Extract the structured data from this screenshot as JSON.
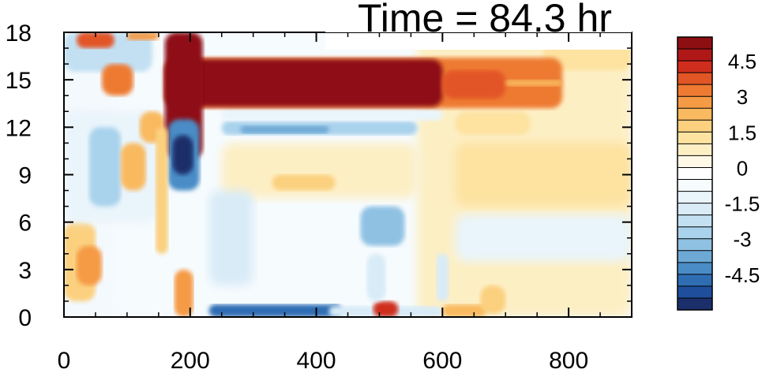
{
  "title": "Time = 84.3 hr",
  "chart_data": {
    "type": "heatmap",
    "title": "Time = 84.3 hr",
    "xlabel": "",
    "ylabel": "",
    "xlim": [
      0,
      900
    ],
    "ylim": [
      0,
      18
    ],
    "x_ticks": [
      0,
      200,
      400,
      600,
      800
    ],
    "y_ticks": [
      0,
      3,
      6,
      9,
      12,
      15,
      18
    ],
    "colorbar": {
      "levels": [
        -5.5,
        -5,
        -4.5,
        -4,
        -3.5,
        -3,
        -2.5,
        -2,
        -1.5,
        -1,
        -0.5,
        0,
        0.5,
        1,
        1.5,
        2,
        2.5,
        3,
        3.5,
        4,
        4.5,
        5,
        5.5
      ],
      "tick_labels": [
        "4.5",
        "3",
        "1.5",
        "0",
        "-1.5",
        "-3",
        "-4.5"
      ],
      "tick_values": [
        4.5,
        3,
        1.5,
        0,
        -1.5,
        -3,
        -4.5
      ],
      "colors_low_to_high": [
        "#1b2f6b",
        "#1f4f9c",
        "#2f6db3",
        "#4a8cc6",
        "#6ea9d6",
        "#8fc1e3",
        "#a9d2ec",
        "#c2e0f2",
        "#d8ebf7",
        "#e9f4fb",
        "#f6fbfe",
        "#ffffff",
        "#fff8e6",
        "#fdefc4",
        "#fde2a0",
        "#fbd07e",
        "#f9b95f",
        "#f59a45",
        "#ee7a32",
        "#e25525",
        "#cf2d1e",
        "#b01818",
        "#8e0f12"
      ]
    },
    "features": [
      {
        "name": "upper positive band",
        "x_range": [
          160,
          790
        ],
        "y_range": [
          13.2,
          16.4
        ],
        "value": 5.5
      },
      {
        "name": "negative band below jet",
        "x_range": [
          250,
          560
        ],
        "y_range": [
          11.5,
          12.4
        ],
        "value": -2.5
      },
      {
        "name": "deep negative core",
        "x_range": [
          170,
          210
        ],
        "y_range": [
          9,
          12
        ],
        "value": -5.5
      },
      {
        "name": "near-surface negative strip",
        "x_range": [
          230,
          440
        ],
        "y_range": [
          0,
          0.8
        ],
        "value": -4.5
      },
      {
        "name": "near-surface positive blob",
        "x_range": [
          490,
          530
        ],
        "y_range": [
          0,
          1
        ],
        "value": 4.5
      }
    ]
  }
}
